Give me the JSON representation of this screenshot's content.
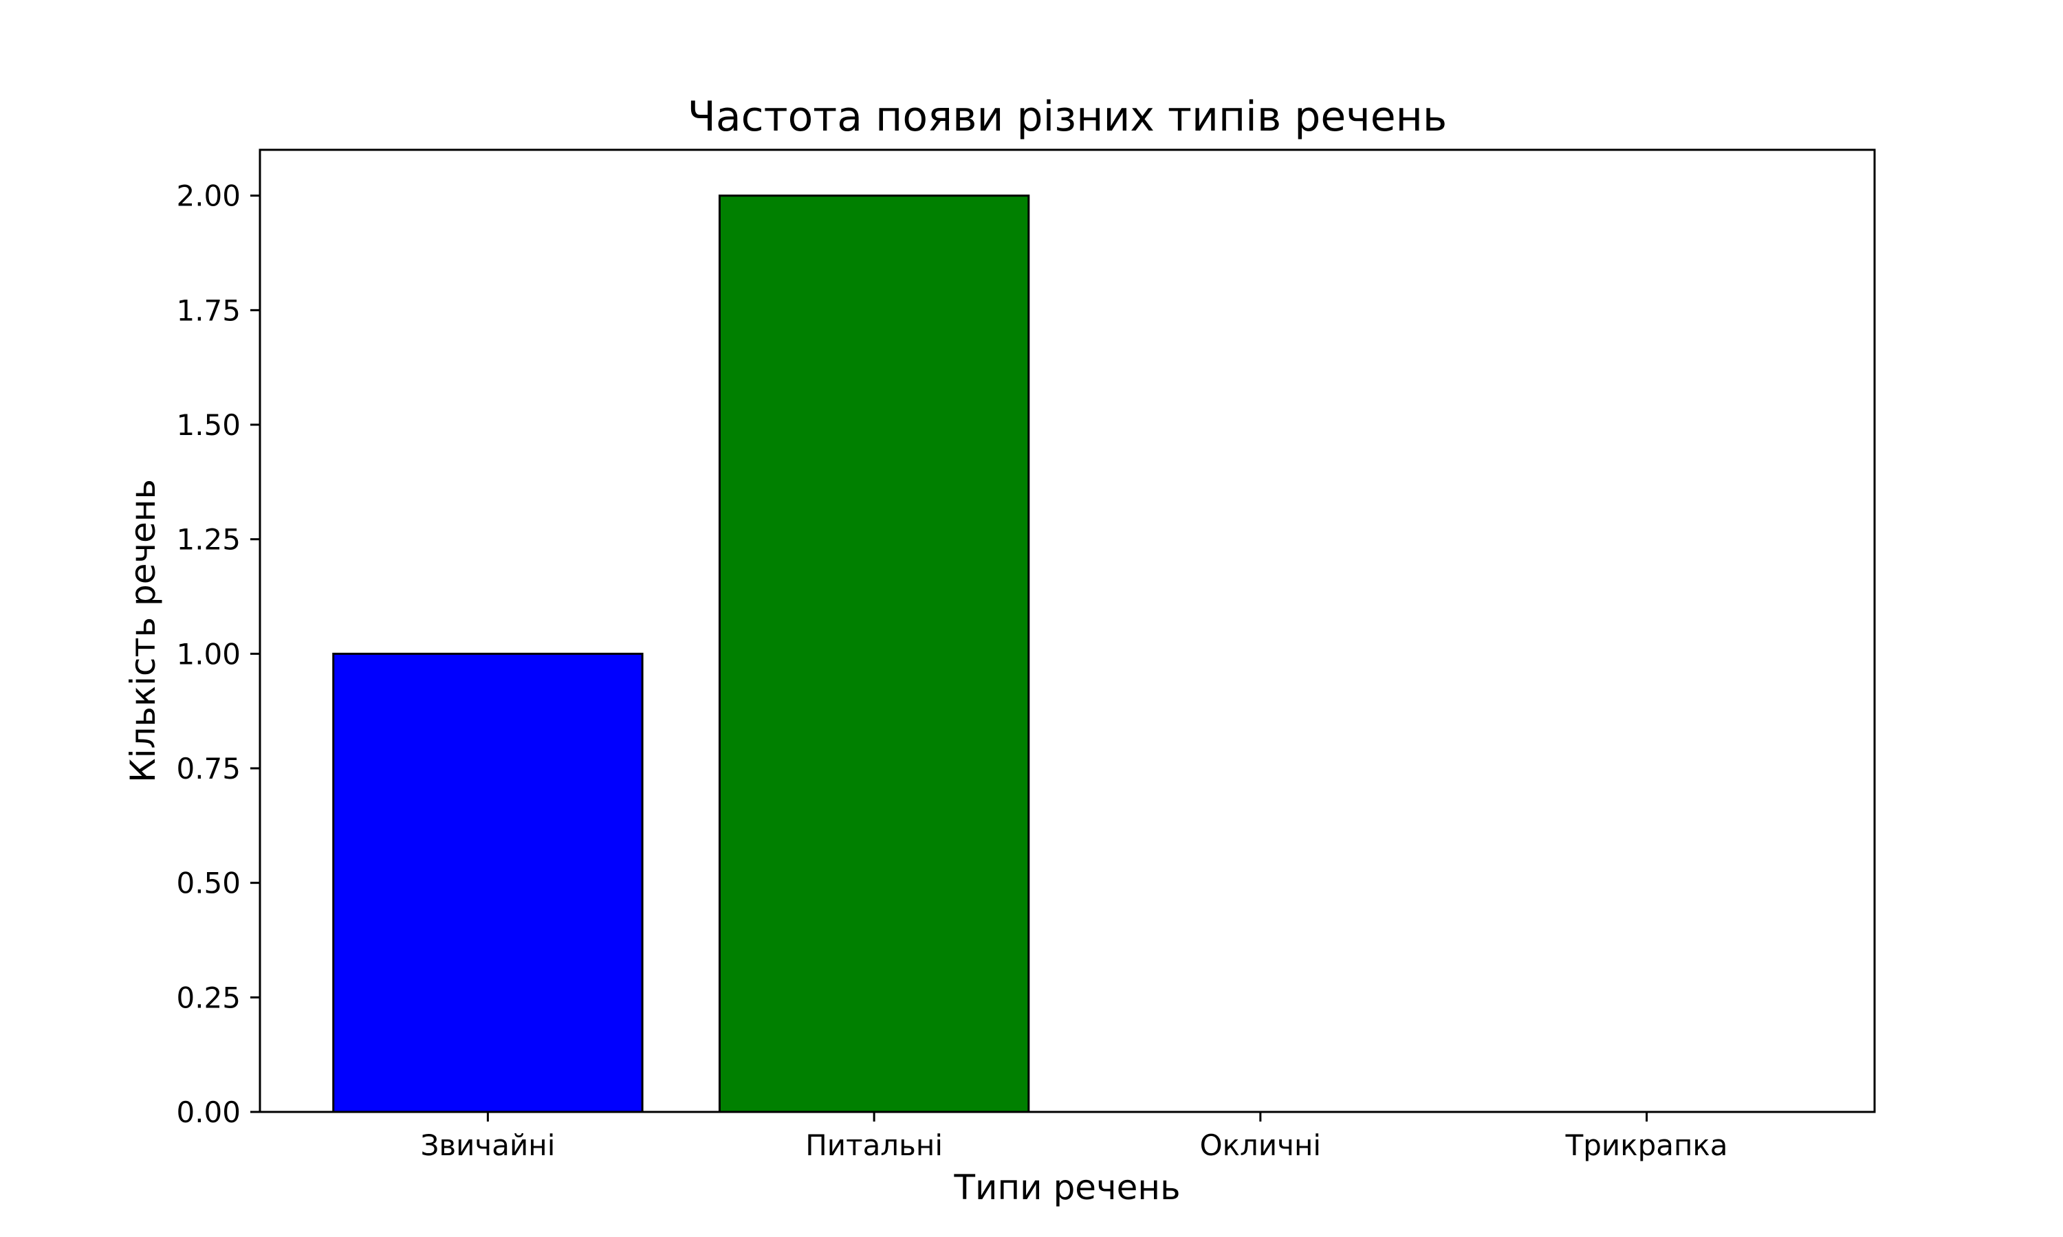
{
  "chart_data": {
    "type": "bar",
    "title": "Частота появи різних типів речень",
    "xlabel": "Типи речень",
    "ylabel": "Кількість речень",
    "categories": [
      "Звичайні",
      "Питальні",
      "Окличні",
      "Трикрапка"
    ],
    "values": [
      1,
      2,
      0,
      0
    ],
    "colors": [
      "#0000ff",
      "#008000",
      "#ff0000",
      "#800080"
    ],
    "edge_color": "#000000",
    "ylim": [
      0,
      2.1
    ],
    "yticks": [
      0,
      0.25,
      0.5,
      0.75,
      1.0,
      1.25,
      1.5,
      1.75,
      2.0
    ],
    "ytick_labels": [
      "0.00",
      "0.25",
      "0.50",
      "0.75",
      "1.00",
      "1.25",
      "1.50",
      "1.75",
      "2.00"
    ],
    "grid": false,
    "legend": "none"
  }
}
